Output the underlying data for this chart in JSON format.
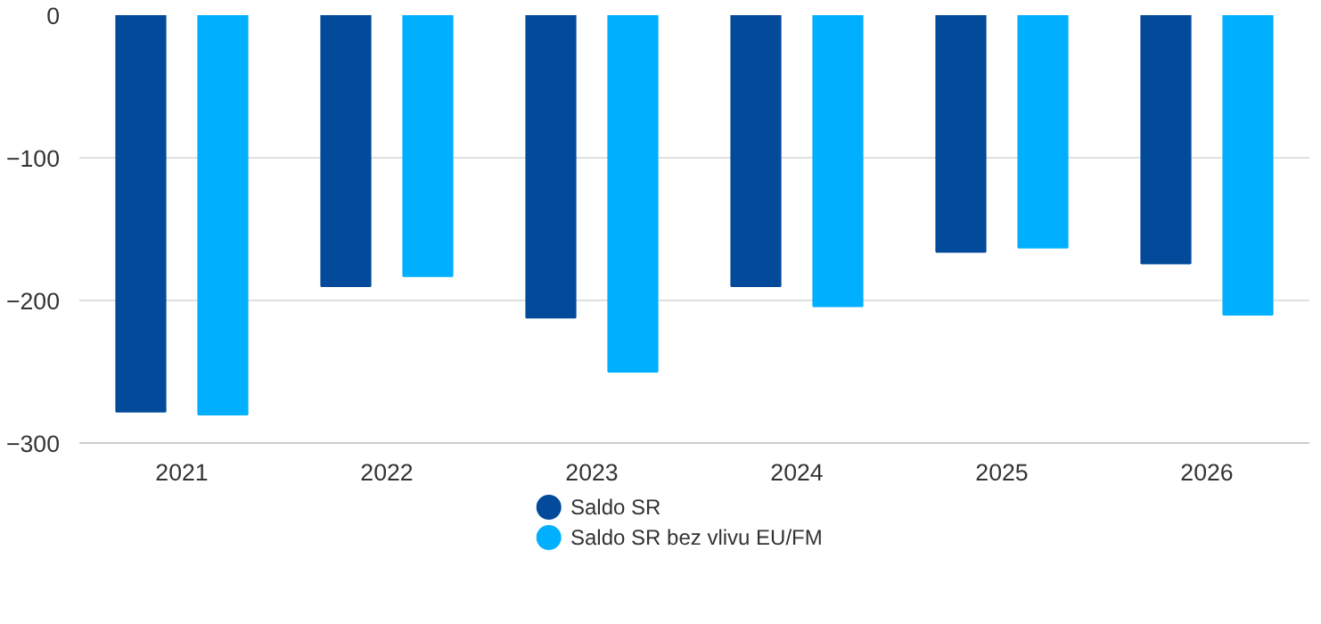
{
  "chart_data": {
    "type": "bar",
    "categories": [
      "2021",
      "2022",
      "2023",
      "2024",
      "2025",
      "2026"
    ],
    "series": [
      {
        "name": "Saldo SR",
        "color": "#034a9a",
        "values": [
          -278,
          -190,
          -212,
          -190,
          -166,
          -174
        ]
      },
      {
        "name": "Saldo SR bez vlivu EU/FM",
        "color": "#00b0ff",
        "values": [
          -280,
          -183,
          -250,
          -204,
          -163,
          -210
        ]
      }
    ],
    "ylim": [
      -300,
      0
    ],
    "yticks": [
      -300,
      -200,
      -100,
      0
    ],
    "grid": "y",
    "legend": "bottom"
  }
}
